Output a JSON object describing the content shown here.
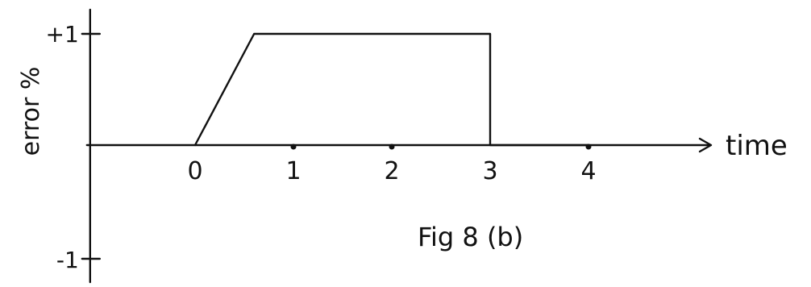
{
  "chart_data": {
    "type": "line",
    "title": "Fig 8 (b)",
    "xlabel": "time",
    "ylabel": "error %",
    "x_ticks": [
      "0",
      "1",
      "2",
      "3",
      "4"
    ],
    "y_ticks": [
      "+1",
      "-1"
    ],
    "xlim": [
      -1.1,
      4.6
    ],
    "ylim": [
      -1,
      1
    ],
    "series": [
      {
        "x": [
          0,
          0.6,
          3,
          3,
          4
        ],
        "y": [
          0,
          1,
          1,
          0,
          0
        ]
      }
    ],
    "grid": false,
    "legend": "none"
  }
}
